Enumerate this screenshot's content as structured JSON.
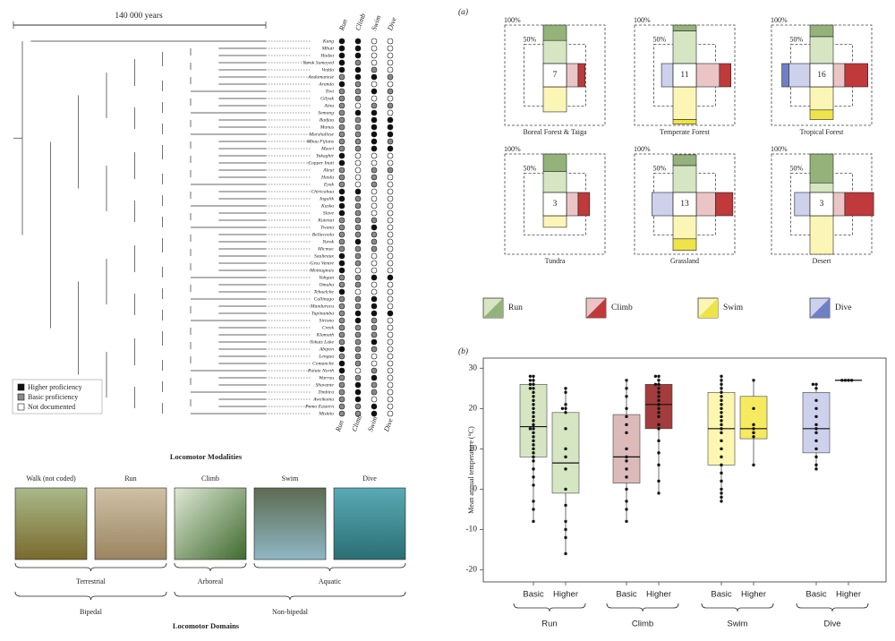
{
  "tree": {
    "scale_label": "140 000 years",
    "columns": [
      "Run",
      "Climb",
      "Swim",
      "Dive"
    ],
    "taxa": [
      "Kung",
      "Mbuti",
      "Hadza",
      "Yurak Samoyed",
      "Vedda",
      "Andamanese",
      "Aranda",
      "Tiwi",
      "Gilyak",
      "Ainu",
      "Semang",
      "Badjau",
      "Manus",
      "Marshallese",
      "Mbau Fijians",
      "Maori",
      "Yukaghir",
      "Copper Inuit",
      "Aleut",
      "Haida",
      "Eyak",
      "Chiricahua",
      "Ingalik",
      "Kaska",
      "Slave",
      "Kutenai",
      "Twana",
      "Bellacoola",
      "Yurok",
      "Micmac",
      "Saulteaux",
      "Gros Ventre",
      "Montagnais",
      "Yahgan",
      "Omaha",
      "Tehuelche",
      "Callinago",
      "Mundurucu",
      "Tupinamba",
      "Siriono",
      "Creek",
      "Klamath",
      "Yokuts Lake",
      "Abipon",
      "Lengua",
      "Comanche",
      "Paiute North",
      "Warrau",
      "Shavante",
      "Timbira",
      "Aweikoma",
      "Pomo Eastern",
      "Miskito"
    ],
    "states": [
      [
        0,
        0,
        2,
        2
      ],
      [
        0,
        0,
        2,
        2
      ],
      [
        0,
        0,
        2,
        2
      ],
      [
        0,
        1,
        2,
        2
      ],
      [
        0,
        0,
        1,
        2
      ],
      [
        1,
        0,
        0,
        1
      ],
      [
        0,
        1,
        2,
        2
      ],
      [
        1,
        1,
        0,
        1
      ],
      [
        1,
        1,
        2,
        2
      ],
      [
        1,
        2,
        1,
        1
      ],
      [
        1,
        0,
        0,
        2
      ],
      [
        1,
        1,
        0,
        0
      ],
      [
        1,
        1,
        0,
        0
      ],
      [
        1,
        1,
        0,
        0
      ],
      [
        1,
        1,
        0,
        1
      ],
      [
        1,
        1,
        0,
        0
      ],
      [
        0,
        2,
        2,
        2
      ],
      [
        0,
        2,
        2,
        2
      ],
      [
        1,
        2,
        1,
        1
      ],
      [
        1,
        2,
        1,
        2
      ],
      [
        1,
        2,
        1,
        2
      ],
      [
        0,
        0,
        2,
        2
      ],
      [
        0,
        1,
        2,
        2
      ],
      [
        0,
        1,
        2,
        2
      ],
      [
        0,
        1,
        2,
        2
      ],
      [
        1,
        1,
        1,
        2
      ],
      [
        1,
        1,
        0,
        2
      ],
      [
        1,
        1,
        1,
        2
      ],
      [
        1,
        0,
        1,
        2
      ],
      [
        1,
        1,
        1,
        2
      ],
      [
        0,
        1,
        2,
        2
      ],
      [
        0,
        1,
        2,
        2
      ],
      [
        0,
        2,
        2,
        2
      ],
      [
        1,
        1,
        0,
        0
      ],
      [
        1,
        1,
        2,
        2
      ],
      [
        0,
        2,
        2,
        2
      ],
      [
        1,
        1,
        0,
        2
      ],
      [
        1,
        1,
        0,
        2
      ],
      [
        1,
        0,
        0,
        0
      ],
      [
        1,
        0,
        1,
        2
      ],
      [
        1,
        1,
        1,
        2
      ],
      [
        1,
        1,
        1,
        2
      ],
      [
        1,
        1,
        0,
        2
      ],
      [
        0,
        1,
        1,
        2
      ],
      [
        1,
        1,
        2,
        2
      ],
      [
        0,
        1,
        2,
        2
      ],
      [
        0,
        2,
        1,
        2
      ],
      [
        1,
        1,
        0,
        2
      ],
      [
        1,
        0,
        1,
        2
      ],
      [
        1,
        0,
        1,
        2
      ],
      [
        1,
        0,
        2,
        2
      ],
      [
        1,
        1,
        0,
        2
      ],
      [
        1,
        1,
        0,
        2
      ]
    ],
    "legend": [
      "Higher proficiency",
      "Basic proficiency",
      "Not documented"
    ]
  },
  "modalities": {
    "title": "Locomotor Modalities",
    "items": [
      "Walk (not coded)",
      "Run",
      "Climb",
      "Swim",
      "Dive"
    ],
    "groups": [
      "Terrestrial",
      "Arboreal",
      "Aquatic"
    ],
    "domains": [
      "Bipedal",
      "Non-bipedal"
    ],
    "domains_title": "Locomotor Domains"
  },
  "panel_a": {
    "label": "(a)",
    "rings": [
      {
        "value": 100,
        "label": "100%"
      },
      {
        "value": 50,
        "label": "50%"
      }
    ],
    "legend": [
      "Run",
      "Climb",
      "Swim",
      "Dive"
    ],
    "colors": [
      {
        "light": "#d6e6c3",
        "dark": "#93b37a"
      },
      {
        "light": "#ebc5c5",
        "dark": "#c0393b"
      },
      {
        "light": "#fbf6b5",
        "dark": "#efe34a"
      },
      {
        "light": "#cdd1ec",
        "dark": "#6f80c4"
      }
    ],
    "biomes": [
      {
        "name": "Boreal Forest & Taiga",
        "count": 7,
        "values": [
          [
            60,
            40
          ],
          [
            30,
            18
          ],
          [
            65,
            0
          ],
          [
            0,
            0
          ]
        ]
      },
      {
        "name": "Temperate Forest",
        "count": 11,
        "values": [
          [
            85,
            15
          ],
          [
            60,
            30
          ],
          [
            85,
            12
          ],
          [
            30,
            0
          ]
        ]
      },
      {
        "name": "Tropical Forest",
        "count": 16,
        "values": [
          [
            70,
            30
          ],
          [
            30,
            60
          ],
          [
            60,
            25
          ],
          [
            55,
            18
          ]
        ]
      },
      {
        "name": "Tundra",
        "count": 3,
        "values": [
          [
            55,
            45
          ],
          [
            30,
            30
          ],
          [
            30,
            0
          ],
          [
            0,
            0
          ]
        ]
      },
      {
        "name": "Grassland",
        "count": 13,
        "values": [
          [
            70,
            28
          ],
          [
            50,
            45
          ],
          [
            60,
            30
          ],
          [
            55,
            0
          ]
        ]
      },
      {
        "name": "Desert",
        "count": 3,
        "values": [
          [
            25,
            75
          ],
          [
            30,
            75
          ],
          [
            100,
            0
          ],
          [
            40,
            0
          ]
        ]
      }
    ]
  },
  "chart_data": {
    "type": "box",
    "label": "(b)",
    "ylabel": "Mean annual temperature (°C)",
    "ylim": [
      -23,
      32.5
    ],
    "yticks": [
      -20,
      -10,
      0,
      10,
      20,
      30
    ],
    "groups": [
      "Run",
      "Climb",
      "Swim",
      "Dive"
    ],
    "categories": [
      "Basic",
      "Higher",
      "Basic",
      "Higher",
      "Basic",
      "Higher",
      "Basic",
      "Higher"
    ],
    "boxes": [
      {
        "color": "#d6e6c3",
        "low": -8,
        "q1": 8,
        "median": 15.5,
        "q3": 26,
        "high": 28,
        "points": [
          28,
          28,
          27,
          27,
          26,
          26,
          25,
          25,
          24,
          23,
          22,
          21,
          20,
          19,
          18,
          17,
          16,
          15,
          15,
          14,
          13,
          12,
          11,
          10,
          9,
          8,
          7,
          5,
          3,
          1,
          -3,
          -5,
          -8
        ]
      },
      {
        "color": "#d6e6c3",
        "low": -16,
        "q1": -1,
        "median": 6.5,
        "q3": 19,
        "high": 25,
        "points": [
          25,
          24,
          21,
          20,
          20,
          19,
          15,
          10,
          8,
          5,
          0,
          -4,
          -8,
          -10,
          -12,
          -16
        ]
      },
      {
        "color": "#dcbaba",
        "low": -8,
        "q1": 1.5,
        "median": 8,
        "q3": 18.5,
        "high": 27,
        "points": [
          27,
          25,
          23,
          20,
          18,
          16,
          14,
          10,
          8,
          7,
          5,
          3,
          0,
          -3,
          -5,
          -8
        ]
      },
      {
        "color": "#a33c3c",
        "low": -1,
        "q1": 15,
        "median": 21,
        "q3": 26,
        "high": 28,
        "points": [
          28,
          28,
          27,
          26,
          26,
          25,
          24,
          23,
          22,
          21,
          20,
          19,
          18,
          16,
          15,
          12,
          9,
          6,
          2,
          -1
        ]
      },
      {
        "color": "#fcf6b0",
        "low": -3,
        "q1": 6,
        "median": 15,
        "q3": 24,
        "high": 28,
        "points": [
          28,
          27,
          26,
          25,
          24,
          23,
          22,
          21,
          20,
          19,
          18,
          17,
          16,
          15,
          14,
          12,
          10,
          8,
          6,
          4,
          2,
          0,
          -1,
          -2,
          -3
        ]
      },
      {
        "color": "#f6ea60",
        "low": 6,
        "q1": 12.5,
        "median": 15,
        "q3": 23,
        "high": 27,
        "points": [
          27,
          20,
          16,
          15,
          14,
          13,
          6
        ]
      },
      {
        "color": "#cdd1ec",
        "low": 5,
        "q1": 9,
        "median": 15,
        "q3": 24,
        "high": 26,
        "points": [
          26,
          26,
          25,
          22,
          20,
          18,
          16,
          15,
          14,
          12,
          10,
          8,
          6,
          5
        ]
      },
      {
        "color": "#cdd1ec",
        "low": 27,
        "q1": 27,
        "median": 27,
        "q3": 27,
        "high": 27,
        "points": [
          27,
          27,
          27,
          27
        ]
      }
    ]
  }
}
